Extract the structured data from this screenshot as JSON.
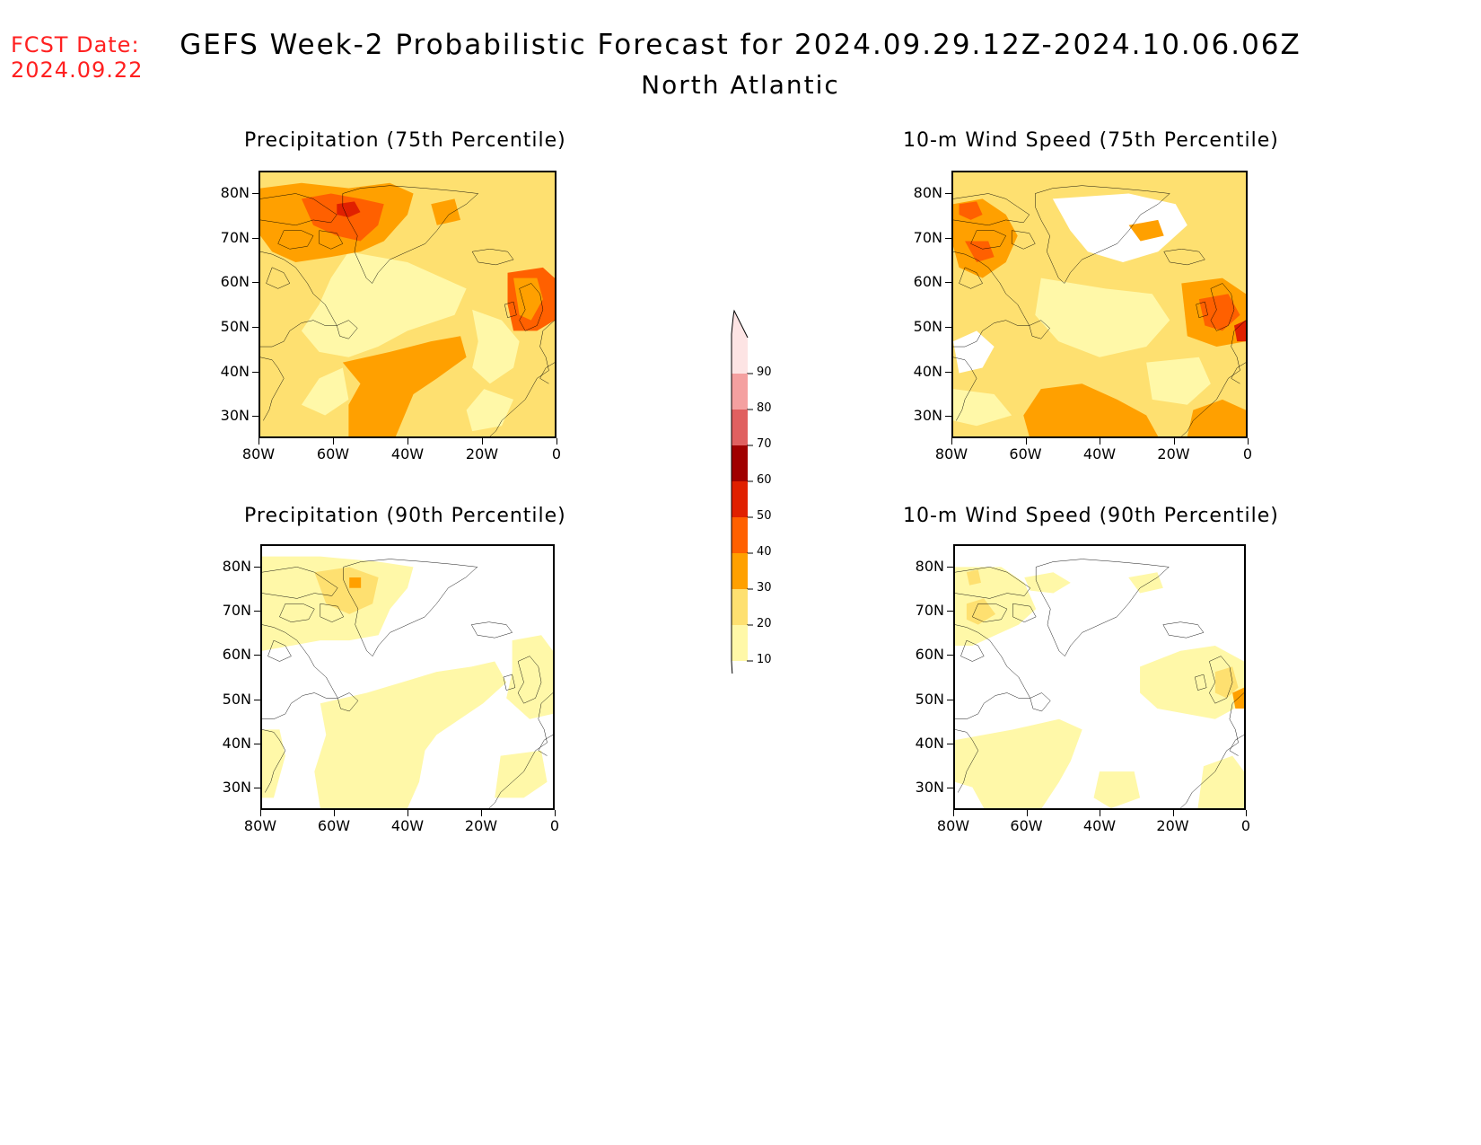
{
  "header": {
    "fcst_label": "FCST Date:",
    "fcst_date": "2024.09.22",
    "title": "GEFS Week-2 Probabilistic Forecast for 2024.09.29.12Z-2024.10.06.06Z",
    "region": "North Atlantic"
  },
  "panels": [
    {
      "id": "precip75",
      "title": "Precipitation (75th Percentile)",
      "level": "high"
    },
    {
      "id": "wind75",
      "title": "10-m Wind Speed (75th Percentile)",
      "level": "high"
    },
    {
      "id": "precip90",
      "title": "Precipitation (90th Percentile)",
      "level": "low"
    },
    {
      "id": "wind90",
      "title": "10-m Wind Speed (90th Percentile)",
      "level": "low"
    }
  ],
  "axes": {
    "lat_labels": [
      "80N",
      "70N",
      "60N",
      "50N",
      "40N",
      "30N"
    ],
    "lon_labels": [
      "80W",
      "60W",
      "40W",
      "20W",
      "0"
    ]
  },
  "colorbar": {
    "labels": [
      "90",
      "80",
      "70",
      "60",
      "50",
      "40",
      "30",
      "20",
      "10"
    ],
    "colors": [
      "#fde4e4",
      "#f4a0a0",
      "#e06060",
      "#a00000",
      "#e02000",
      "#ff6000",
      "#ffa000",
      "#fee070",
      "#fff8a8"
    ]
  }
}
